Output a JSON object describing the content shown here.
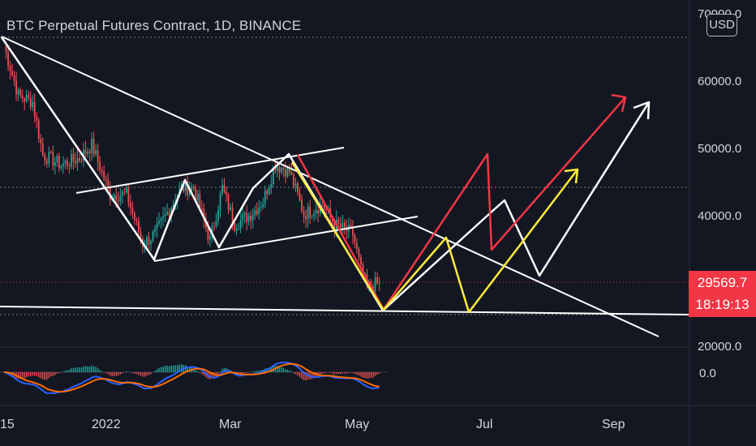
{
  "header": {
    "title": "BTC Perpetual Futures Contract, 1D, BINANCE",
    "currency_button": "USD"
  },
  "price_axis": {
    "ticks": [
      "70000.0",
      "60000.0",
      "50000.0",
      "40000.0",
      "20000.0"
    ],
    "current_price": "29569.7",
    "countdown": "18:19:13",
    "current_price_color": "#f23645"
  },
  "oscillator_axis": {
    "ticks": [
      "0.0"
    ]
  },
  "time_axis": {
    "ticks": [
      "15",
      "2022",
      "Mar",
      "May",
      "Jul",
      "Sep"
    ]
  },
  "colors": {
    "background": "#131722",
    "up": "#26a69a",
    "down": "#ef5350",
    "projection_red": "#f23645",
    "projection_yellow": "#ffeb3b",
    "projection_white": "#ffffff",
    "macd_line": "#2962ff",
    "signal_line": "#ff6d00"
  },
  "chart_data": {
    "type": "candlestick",
    "symbol": "BTC Perpetual Futures Contract",
    "interval": "1D",
    "exchange": "BINANCE",
    "y_axis": {
      "min": 20000,
      "max": 70000,
      "scale": "linear"
    },
    "x_axis": {
      "start": "2021-11-15",
      "end": "2022-09-30"
    },
    "grid": true,
    "close_path": [
      [
        "2021-11-15",
        65500
      ],
      [
        "2021-11-22",
        58000
      ],
      [
        "2021-11-29",
        57000
      ],
      [
        "2021-12-04",
        49000
      ],
      [
        "2021-12-13",
        47500
      ],
      [
        "2021-12-22",
        48500
      ],
      [
        "2021-12-28",
        50500
      ],
      [
        "2022-01-06",
        43000
      ],
      [
        "2022-01-14",
        43000
      ],
      [
        "2022-01-22",
        35500
      ],
      [
        "2022-01-28",
        37000
      ],
      [
        "2022-02-10",
        44000
      ],
      [
        "2022-02-16",
        44000
      ],
      [
        "2022-02-24",
        36000
      ],
      [
        "2022-03-02",
        44000
      ],
      [
        "2022-03-08",
        38500
      ],
      [
        "2022-03-16",
        40000
      ],
      [
        "2022-03-22",
        42000
      ],
      [
        "2022-03-28",
        47500
      ],
      [
        "2022-04-04",
        46500
      ],
      [
        "2022-04-11",
        40000
      ],
      [
        "2022-04-20",
        41500
      ],
      [
        "2022-04-26",
        38500
      ],
      [
        "2022-05-05",
        37000
      ],
      [
        "2022-05-09",
        31500
      ],
      [
        "2022-05-12",
        29000
      ],
      [
        "2022-05-18",
        29569.7
      ]
    ]
  }
}
